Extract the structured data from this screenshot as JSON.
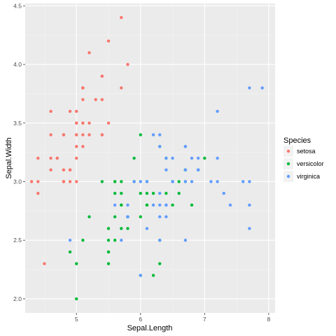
{
  "chart_data": {
    "type": "scatter",
    "xlabel": "Sepal.Length",
    "ylabel": "Sepal.Width",
    "xlim": [
      4.2,
      8.1
    ],
    "ylim": [
      1.88,
      4.52
    ],
    "x_ticks": [
      5,
      6,
      7,
      8
    ],
    "x_tick_labels": [
      "5",
      "6",
      "7",
      "8"
    ],
    "y_ticks": [
      2.0,
      2.5,
      3.0,
      3.5,
      4.0,
      4.5
    ],
    "y_tick_labels": [
      "2.0",
      "2.5",
      "3.0",
      "3.5",
      "4.0",
      "4.5"
    ],
    "grid": true,
    "legend": {
      "title": "Species",
      "position": "right"
    },
    "series": [
      {
        "name": "setosa",
        "color": "#F8766D",
        "points": [
          [
            5.1,
            3.5
          ],
          [
            4.9,
            3.0
          ],
          [
            4.7,
            3.2
          ],
          [
            4.6,
            3.1
          ],
          [
            5.0,
            3.6
          ],
          [
            5.4,
            3.9
          ],
          [
            4.6,
            3.4
          ],
          [
            5.0,
            3.4
          ],
          [
            4.4,
            2.9
          ],
          [
            4.9,
            3.1
          ],
          [
            5.4,
            3.7
          ],
          [
            4.8,
            3.4
          ],
          [
            4.8,
            3.0
          ],
          [
            4.3,
            3.0
          ],
          [
            5.8,
            4.0
          ],
          [
            5.7,
            4.4
          ],
          [
            5.4,
            3.9
          ],
          [
            5.1,
            3.5
          ],
          [
            5.7,
            3.8
          ],
          [
            5.1,
            3.8
          ],
          [
            5.4,
            3.4
          ],
          [
            5.1,
            3.7
          ],
          [
            4.6,
            3.6
          ],
          [
            5.1,
            3.3
          ],
          [
            4.8,
            3.4
          ],
          [
            5.0,
            3.0
          ],
          [
            5.0,
            3.4
          ],
          [
            5.2,
            3.5
          ],
          [
            5.2,
            3.4
          ],
          [
            4.7,
            3.2
          ],
          [
            4.8,
            3.1
          ],
          [
            5.4,
            3.4
          ],
          [
            5.2,
            4.1
          ],
          [
            5.5,
            4.2
          ],
          [
            4.9,
            3.1
          ],
          [
            5.0,
            3.2
          ],
          [
            5.5,
            3.5
          ],
          [
            4.9,
            3.6
          ],
          [
            4.4,
            3.0
          ],
          [
            5.1,
            3.4
          ],
          [
            5.0,
            3.5
          ],
          [
            4.5,
            2.3
          ],
          [
            4.4,
            3.2
          ],
          [
            5.0,
            3.5
          ],
          [
            5.1,
            3.8
          ],
          [
            4.8,
            3.0
          ],
          [
            5.1,
            3.8
          ],
          [
            4.6,
            3.2
          ],
          [
            5.3,
            3.7
          ],
          [
            5.0,
            3.3
          ]
        ]
      },
      {
        "name": "versicolor",
        "color": "#00BA38",
        "points": [
          [
            7.0,
            3.2
          ],
          [
            6.4,
            3.2
          ],
          [
            6.9,
            3.1
          ],
          [
            5.5,
            2.3
          ],
          [
            6.5,
            2.8
          ],
          [
            5.7,
            2.8
          ],
          [
            6.3,
            3.3
          ],
          [
            4.9,
            2.4
          ],
          [
            6.6,
            2.9
          ],
          [
            5.2,
            2.7
          ],
          [
            5.0,
            2.0
          ],
          [
            5.9,
            3.0
          ],
          [
            6.0,
            2.2
          ],
          [
            6.1,
            2.9
          ],
          [
            5.6,
            2.9
          ],
          [
            6.7,
            3.1
          ],
          [
            5.6,
            3.0
          ],
          [
            5.8,
            2.7
          ],
          [
            6.2,
            2.2
          ],
          [
            5.6,
            2.5
          ],
          [
            5.9,
            3.2
          ],
          [
            6.1,
            2.8
          ],
          [
            6.3,
            2.5
          ],
          [
            6.1,
            2.8
          ],
          [
            6.4,
            2.9
          ],
          [
            6.6,
            3.0
          ],
          [
            6.8,
            2.8
          ],
          [
            6.7,
            3.0
          ],
          [
            6.0,
            2.9
          ],
          [
            5.7,
            2.6
          ],
          [
            5.5,
            2.4
          ],
          [
            5.5,
            2.4
          ],
          [
            5.8,
            2.7
          ],
          [
            6.0,
            2.7
          ],
          [
            5.4,
            3.0
          ],
          [
            6.0,
            3.4
          ],
          [
            6.7,
            3.1
          ],
          [
            6.3,
            2.3
          ],
          [
            5.6,
            3.0
          ],
          [
            5.5,
            2.5
          ],
          [
            5.5,
            2.6
          ],
          [
            6.1,
            3.0
          ],
          [
            5.8,
            2.6
          ],
          [
            5.0,
            2.3
          ],
          [
            5.6,
            2.7
          ],
          [
            5.7,
            3.0
          ],
          [
            5.7,
            2.9
          ],
          [
            6.2,
            2.9
          ],
          [
            5.1,
            2.5
          ],
          [
            5.7,
            2.8
          ]
        ]
      },
      {
        "name": "virginica",
        "color": "#619CFF",
        "points": [
          [
            6.3,
            3.3
          ],
          [
            5.8,
            2.7
          ],
          [
            7.1,
            3.0
          ],
          [
            6.3,
            2.9
          ],
          [
            6.5,
            3.0
          ],
          [
            7.6,
            3.0
          ],
          [
            4.9,
            2.5
          ],
          [
            7.3,
            2.9
          ],
          [
            6.7,
            2.5
          ],
          [
            7.2,
            3.6
          ],
          [
            6.5,
            3.2
          ],
          [
            6.4,
            2.7
          ],
          [
            6.8,
            3.0
          ],
          [
            5.7,
            2.5
          ],
          [
            5.8,
            2.8
          ],
          [
            6.4,
            3.2
          ],
          [
            6.5,
            3.0
          ],
          [
            7.7,
            3.8
          ],
          [
            7.7,
            2.6
          ],
          [
            6.0,
            2.2
          ],
          [
            6.9,
            3.2
          ],
          [
            5.6,
            2.8
          ],
          [
            7.7,
            2.8
          ],
          [
            6.3,
            2.7
          ],
          [
            6.7,
            3.3
          ],
          [
            7.2,
            3.2
          ],
          [
            6.2,
            2.8
          ],
          [
            6.1,
            3.0
          ],
          [
            6.4,
            2.8
          ],
          [
            7.2,
            3.0
          ],
          [
            7.4,
            2.8
          ],
          [
            7.9,
            3.8
          ],
          [
            6.4,
            2.8
          ],
          [
            6.3,
            2.8
          ],
          [
            6.1,
            2.6
          ],
          [
            7.7,
            3.0
          ],
          [
            6.3,
            3.4
          ],
          [
            6.4,
            3.1
          ],
          [
            6.0,
            3.0
          ],
          [
            6.9,
            3.1
          ],
          [
            6.7,
            3.1
          ],
          [
            6.9,
            3.1
          ],
          [
            5.8,
            2.7
          ],
          [
            6.8,
            3.2
          ],
          [
            6.7,
            3.3
          ],
          [
            6.7,
            3.0
          ],
          [
            6.3,
            2.5
          ],
          [
            6.5,
            3.0
          ],
          [
            6.2,
            3.4
          ],
          [
            5.9,
            3.0
          ]
        ]
      }
    ]
  }
}
